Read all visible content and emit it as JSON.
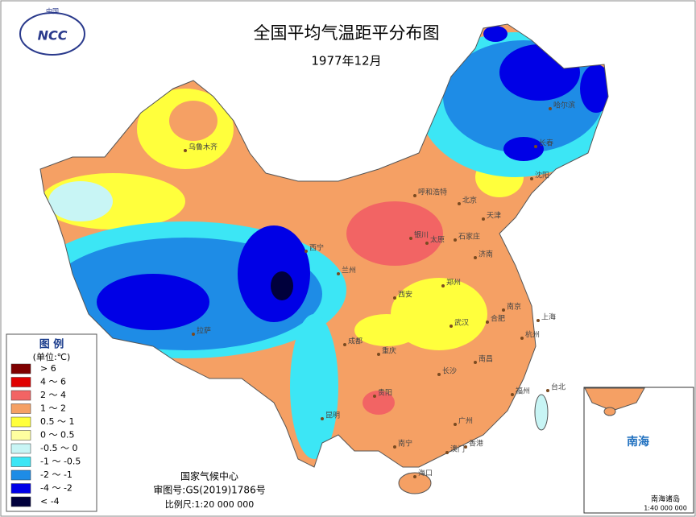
{
  "header": {
    "logo_text": "NCC",
    "logo_country": "中国",
    "title": "全国平均气温距平分布图",
    "subtitle": "1977年12月"
  },
  "legend": {
    "title": "图 例",
    "unit": "(单位:℃)",
    "items": [
      {
        "label": "> 6",
        "color": "#7f0000"
      },
      {
        "label": "4 ～ 6",
        "color": "#e00000"
      },
      {
        "label": "2 ～ 4",
        "color": "#f26464"
      },
      {
        "label": "1 ～ 2",
        "color": "#f5a064"
      },
      {
        "label": "0.5 ～ 1",
        "color": "#ffff3c"
      },
      {
        "label": "0 ～ 0.5",
        "color": "#ffffa0"
      },
      {
        "label": "-0.5 ～ 0",
        "color": "#c8f5f5"
      },
      {
        "label": "-1 ～ -0.5",
        "color": "#3ce6f5"
      },
      {
        "label": "-2 ～ -1",
        "color": "#1e8ce6"
      },
      {
        "label": "-4 ～ -2",
        "color": "#0000e6"
      },
      {
        "label": "< -4",
        "color": "#00003c"
      }
    ]
  },
  "footer": {
    "org": "国家气候中心",
    "approval": "审图号:GS(2019)1786号",
    "scale": "比例尺:1:20 000 000"
  },
  "inset": {
    "sea": "南海",
    "islands": "南海诸岛",
    "scale": "1:40 000 000"
  },
  "cities": [
    "乌鲁木齐",
    "哈尔滨",
    "长春",
    "沈阳",
    "呼和浩特",
    "北京",
    "天津",
    "银川",
    "太原",
    "石家庄",
    "济南",
    "西宁",
    "兰州",
    "郑州",
    "西安",
    "南京",
    "上海",
    "合肥",
    "武汉",
    "杭州",
    "成都",
    "重庆",
    "拉萨",
    "长沙",
    "南昌",
    "福州",
    "台北",
    "贵阳",
    "昆明",
    "广州",
    "香港",
    "澳门",
    "南宁",
    "海口"
  ]
}
